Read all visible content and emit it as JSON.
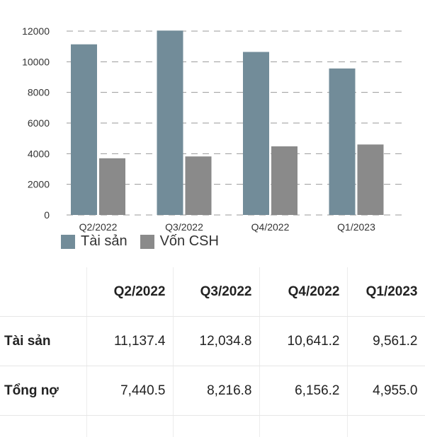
{
  "chart_data": {
    "type": "bar",
    "categories": [
      "Q2/2022",
      "Q3/2022",
      "Q4/2022",
      "Q1/2023"
    ],
    "series": [
      {
        "name": "Tài sản",
        "color": "#728c99",
        "values": [
          11137.4,
          12034.8,
          10641.2,
          9561.2
        ]
      },
      {
        "name": "Vốn CSH",
        "color": "#8a8a8a",
        "values": [
          3700,
          3820,
          4480,
          4600
        ]
      }
    ],
    "yticks": [
      0,
      2000,
      4000,
      6000,
      8000,
      10000,
      12000
    ],
    "ylim": [
      0,
      12000
    ],
    "grid": true,
    "legend": "bottom-left"
  },
  "table": {
    "headers": [
      "",
      "Q2/2022",
      "Q3/2022",
      "Q4/2022",
      "Q1/2023"
    ],
    "rows": [
      {
        "label": "Tài sản",
        "values": [
          "11,137.4",
          "12,034.8",
          "10,641.2",
          "9,561.2"
        ]
      },
      {
        "label": "Tổng nợ",
        "values": [
          "7,440.5",
          "8,216.8",
          "6,156.2",
          "4,955.0"
        ]
      }
    ]
  }
}
